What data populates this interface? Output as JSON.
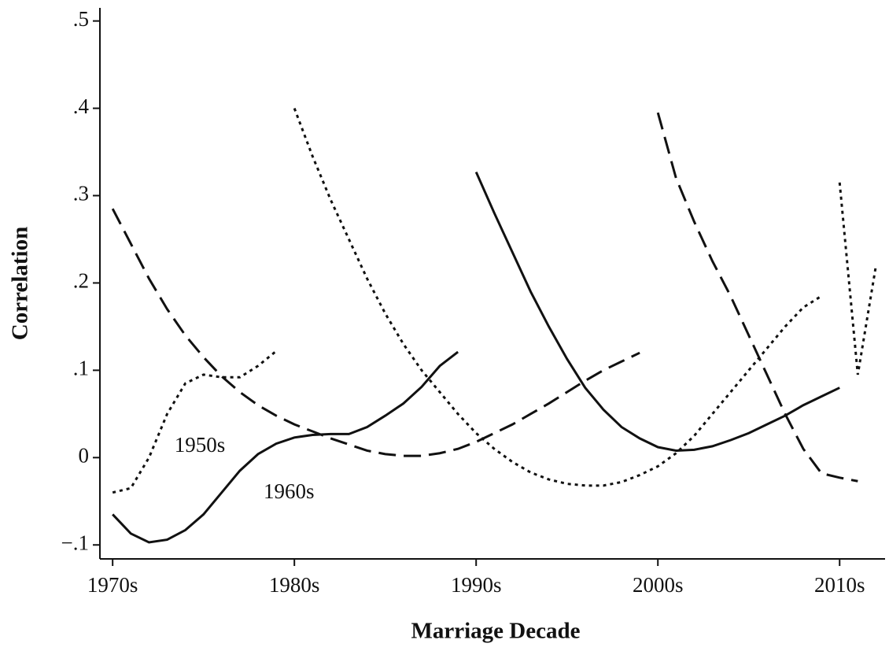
{
  "chart_data": {
    "type": "line",
    "xlabel": "Marriage Decade",
    "ylabel": "Correlation",
    "xlim": [
      1969.3,
      2012.5
    ],
    "ylim": [
      -0.116,
      0.515
    ],
    "xticks": [
      {
        "value": 1970,
        "label": "1970s"
      },
      {
        "value": 1980,
        "label": "1980s"
      },
      {
        "value": 1990,
        "label": "1990s"
      },
      {
        "value": 2000,
        "label": "2000s"
      },
      {
        "value": 2010,
        "label": "2010s"
      }
    ],
    "yticks": [
      {
        "value": -0.1,
        "label": "−.1"
      },
      0,
      {
        "value": 0.1,
        "label": ".1"
      },
      {
        "value": 0.2,
        "label": ".2"
      },
      {
        "value": 0.3,
        "label": ".3"
      },
      {
        "value": 0.4,
        "label": ".4"
      },
      {
        "value": 0.5,
        "label": ".5"
      }
    ],
    "series": [
      {
        "color": "#111111",
        "dash": "dotted",
        "x": [
          1970,
          1971,
          1972,
          1973,
          1974,
          1975,
          1976,
          1977,
          1978,
          1979
        ],
        "values": [
          -0.04,
          -0.035,
          0.0,
          0.05,
          0.085,
          0.095,
          0.092,
          0.092,
          0.105,
          0.122
        ]
      },
      {
        "color": "#111111",
        "dash": "solid",
        "x": [
          1970,
          1971,
          1972,
          1973,
          1974,
          1975,
          1976,
          1977,
          1978,
          1979,
          1980,
          1981,
          1982,
          1983,
          1984,
          1985,
          1986,
          1987,
          1988,
          1989
        ],
        "values": [
          -0.065,
          -0.087,
          -0.097,
          -0.094,
          -0.083,
          -0.065,
          -0.04,
          -0.015,
          0.004,
          0.016,
          0.023,
          0.026,
          0.027,
          0.027,
          0.035,
          0.048,
          0.062,
          0.081,
          0.105,
          0.121
        ]
      },
      {
        "color": "#111111",
        "dash": "dashed",
        "x": [
          1970,
          1971,
          1972,
          1973,
          1974,
          1975,
          1976,
          1977,
          1978,
          1979,
          1980,
          1981,
          1982,
          1983,
          1984,
          1985,
          1986,
          1987,
          1988,
          1989,
          1990,
          1991,
          1992,
          1993,
          1994,
          1995,
          1996,
          1997,
          1998,
          1999
        ],
        "values": [
          0.285,
          0.245,
          0.205,
          0.17,
          0.14,
          0.115,
          0.093,
          0.075,
          0.06,
          0.048,
          0.038,
          0.03,
          0.022,
          0.015,
          0.008,
          0.004,
          0.002,
          0.002,
          0.005,
          0.01,
          0.018,
          0.028,
          0.038,
          0.05,
          0.062,
          0.075,
          0.088,
          0.1,
          0.11,
          0.12
        ]
      },
      {
        "color": "#111111",
        "dash": "dotted",
        "x": [
          1980,
          1981,
          1982,
          1983,
          1984,
          1985,
          1986,
          1987,
          1988,
          1989,
          1990,
          1991,
          1992,
          1993,
          1994,
          1995,
          1996,
          1997,
          1998,
          1999,
          2000,
          2001,
          2002,
          2003,
          2004,
          2005,
          2006,
          2007,
          2008,
          2009
        ],
        "values": [
          0.4,
          0.345,
          0.295,
          0.25,
          0.205,
          0.165,
          0.13,
          0.1,
          0.075,
          0.05,
          0.028,
          0.01,
          -0.005,
          -0.017,
          -0.025,
          -0.03,
          -0.032,
          -0.032,
          -0.028,
          -0.02,
          -0.01,
          0.005,
          0.025,
          0.05,
          0.075,
          0.1,
          0.125,
          0.15,
          0.172,
          0.185
        ]
      },
      {
        "color": "#111111",
        "dash": "solid",
        "x": [
          1990,
          1991,
          1992,
          1993,
          1994,
          1995,
          1996,
          1997,
          1998,
          1999,
          2000,
          2001,
          2002,
          2003,
          2004,
          2005,
          2006,
          2007,
          2008,
          2009,
          2010
        ],
        "values": [
          0.327,
          0.28,
          0.235,
          0.19,
          0.15,
          0.113,
          0.08,
          0.055,
          0.035,
          0.022,
          0.012,
          0.008,
          0.009,
          0.013,
          0.02,
          0.028,
          0.038,
          0.048,
          0.06,
          0.07,
          0.08
        ]
      },
      {
        "color": "#111111",
        "dash": "dashed",
        "x": [
          2000,
          2001,
          2002,
          2003,
          2004,
          2005,
          2006,
          2007,
          2008,
          2009,
          2010,
          2011
        ],
        "values": [
          0.395,
          0.32,
          0.27,
          0.225,
          0.185,
          0.14,
          0.095,
          0.05,
          0.01,
          -0.018,
          -0.023,
          -0.027
        ]
      },
      {
        "color": "#111111",
        "dash": "dotted",
        "x": [
          2010,
          2011,
          2012
        ],
        "values": [
          0.315,
          0.095,
          0.22
        ]
      }
    ],
    "annotations": [
      {
        "text": "1950s",
        "x": 1974.8,
        "y": 0.012
      },
      {
        "text": "1960s",
        "x": 1979.7,
        "y": -0.041
      }
    ]
  }
}
